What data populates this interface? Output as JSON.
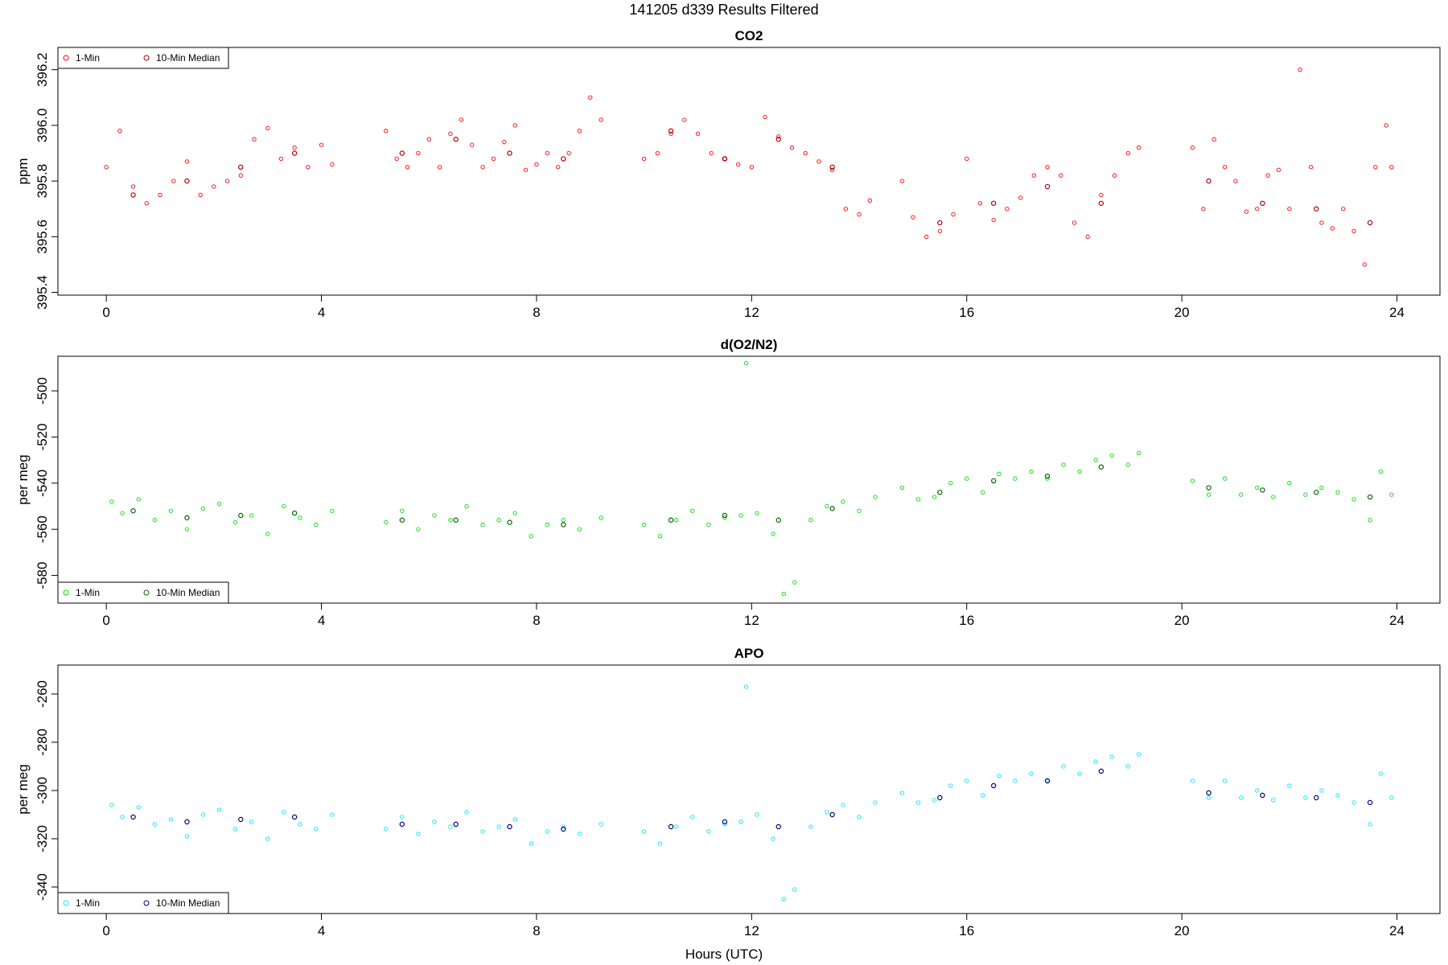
{
  "figure": {
    "title": "141205   d339   Results Filtered",
    "xlabel": "Hours (UTC)"
  },
  "chart_data": [
    {
      "type": "scatter",
      "title": "CO2",
      "ylabel": "ppm",
      "xlim": [
        -0.9,
        24.8
      ],
      "ylim": [
        395.39,
        396.28
      ],
      "x_ticks": [
        0,
        4,
        8,
        12,
        16,
        20,
        24
      ],
      "y_ticks": [
        395.4,
        395.6,
        395.8,
        396.0,
        396.2
      ],
      "y_tick_labels": [
        "395.4",
        "395.6",
        "395.8",
        "396.0",
        "396.2"
      ],
      "legend": {
        "placement": "top-left",
        "entries": [
          "1-Min",
          "10-Min Median"
        ]
      },
      "grid": false,
      "series": [
        {
          "name": "1-Min",
          "color": "#ff0000",
          "marker": "open-circle",
          "x": [
            0.0,
            0.25,
            0.5,
            0.75,
            1.0,
            1.25,
            1.5,
            1.75,
            2.0,
            2.25,
            2.5,
            2.75,
            3.0,
            3.25,
            3.5,
            3.75,
            4.0,
            4.2,
            5.2,
            5.4,
            5.6,
            5.8,
            6.0,
            6.2,
            6.4,
            6.6,
            6.8,
            7.0,
            7.2,
            7.4,
            7.6,
            7.8,
            8.0,
            8.2,
            8.4,
            8.6,
            8.8,
            9.0,
            9.2,
            10.0,
            10.25,
            10.5,
            10.75,
            11.0,
            11.25,
            11.5,
            11.75,
            12.0,
            12.25,
            12.5,
            12.75,
            13.0,
            13.25,
            13.5,
            13.75,
            14.0,
            14.2,
            14.8,
            15.0,
            15.25,
            15.5,
            15.75,
            16.0,
            16.25,
            16.5,
            16.75,
            17.0,
            17.25,
            17.5,
            17.75,
            18.0,
            18.25,
            18.5,
            18.75,
            19.0,
            19.2,
            20.2,
            20.4,
            20.6,
            20.8,
            21.0,
            21.2,
            21.4,
            21.6,
            21.8,
            22.0,
            22.2,
            22.4,
            22.6,
            22.8,
            23.0,
            23.2,
            23.4,
            23.6,
            23.8,
            23.9
          ],
          "y": [
            395.85,
            395.98,
            395.78,
            395.72,
            395.75,
            395.8,
            395.87,
            395.75,
            395.78,
            395.8,
            395.82,
            395.95,
            395.99,
            395.88,
            395.92,
            395.85,
            395.93,
            395.86,
            395.98,
            395.88,
            395.85,
            395.9,
            395.95,
            395.85,
            395.97,
            396.02,
            395.93,
            395.85,
            395.88,
            395.94,
            396.0,
            395.84,
            395.86,
            395.9,
            395.85,
            395.9,
            395.98,
            396.1,
            396.02,
            395.88,
            395.9,
            395.97,
            396.02,
            395.97,
            395.9,
            395.88,
            395.86,
            395.85,
            396.03,
            395.96,
            395.92,
            395.9,
            395.87,
            395.84,
            395.7,
            395.68,
            395.73,
            395.8,
            395.67,
            395.6,
            395.62,
            395.68,
            395.88,
            395.72,
            395.66,
            395.7,
            395.74,
            395.82,
            395.85,
            395.82,
            395.65,
            395.6,
            395.75,
            395.82,
            395.9,
            395.92,
            395.92,
            395.7,
            395.95,
            395.85,
            395.8,
            395.69,
            395.7,
            395.82,
            395.84,
            395.7,
            396.2,
            395.85,
            395.65,
            395.63,
            395.7,
            395.62,
            395.5,
            395.85,
            396.0,
            395.85
          ]
        },
        {
          "name": "10-Min Median",
          "color": "#b00000",
          "marker": "open-circle",
          "x": [
            0.5,
            1.5,
            2.5,
            3.5,
            5.5,
            6.5,
            7.5,
            8.5,
            10.5,
            11.5,
            12.5,
            13.5,
            15.5,
            16.5,
            17.5,
            18.5,
            20.5,
            21.5,
            22.5,
            23.5
          ],
          "y": [
            395.75,
            395.8,
            395.85,
            395.9,
            395.9,
            395.95,
            395.9,
            395.88,
            395.98,
            395.88,
            395.95,
            395.85,
            395.65,
            395.72,
            395.78,
            395.72,
            395.8,
            395.72,
            395.7,
            395.65
          ]
        }
      ]
    },
    {
      "type": "scatter",
      "title": "d(O2/N2)",
      "ylabel": "per meg",
      "xlim": [
        -0.9,
        24.8
      ],
      "ylim": [
        -592,
        -485
      ],
      "x_ticks": [
        0,
        4,
        8,
        12,
        16,
        20,
        24
      ],
      "y_ticks": [
        -580,
        -560,
        -540,
        -520,
        -500
      ],
      "y_tick_labels": [
        "-580",
        "-560",
        "-540",
        "-520",
        "-500"
      ],
      "legend": {
        "placement": "bottom-left",
        "entries": [
          "1-Min",
          "10-Min Median"
        ]
      },
      "grid": false,
      "series": [
        {
          "name": "1-Min",
          "color": "#00dd00",
          "marker": "open-circle",
          "x": [
            0.1,
            0.3,
            0.6,
            0.9,
            1.2,
            1.5,
            1.8,
            2.1,
            2.4,
            2.7,
            3.0,
            3.3,
            3.6,
            3.9,
            4.2,
            5.2,
            5.5,
            5.8,
            6.1,
            6.4,
            6.7,
            7.0,
            7.3,
            7.6,
            7.9,
            8.2,
            8.5,
            8.8,
            9.2,
            10.0,
            10.3,
            10.6,
            10.9,
            11.2,
            11.5,
            11.8,
            11.9,
            12.1,
            12.4,
            12.6,
            12.8,
            13.1,
            13.4,
            13.7,
            14.0,
            14.3,
            14.8,
            15.1,
            15.4,
            15.7,
            16.0,
            16.3,
            16.6,
            16.9,
            17.2,
            17.5,
            17.8,
            18.1,
            18.4,
            18.7,
            19.0,
            19.2,
            20.2,
            20.5,
            20.8,
            21.1,
            21.4,
            21.7,
            22.0,
            22.3,
            22.6,
            22.9,
            23.2,
            23.5,
            23.7,
            23.9
          ],
          "y": [
            -548,
            -553,
            -547,
            -556,
            -552,
            -560,
            -551,
            -549,
            -557,
            -554,
            -562,
            -550,
            -555,
            -558,
            -552,
            -557,
            -552,
            -560,
            -554,
            -556,
            -550,
            -558,
            -556,
            -553,
            -563,
            -558,
            -556,
            -560,
            -555,
            -558,
            -563,
            -556,
            -552,
            -558,
            -555,
            -554,
            -488,
            -553,
            -562,
            -588,
            -583,
            -556,
            -550,
            -548,
            -552,
            -546,
            -542,
            -547,
            -546,
            -540,
            -538,
            -544,
            -536,
            -538,
            -535,
            -538,
            -532,
            -535,
            -530,
            -528,
            -532,
            -527,
            -539,
            -545,
            -538,
            -545,
            -542,
            -546,
            -540,
            -545,
            -542,
            -544,
            -547,
            -556,
            -535,
            -545
          ]
        },
        {
          "name": "10-Min Median",
          "color": "#006600",
          "marker": "open-circle",
          "x": [
            0.5,
            1.5,
            2.5,
            3.5,
            5.5,
            6.5,
            7.5,
            8.5,
            10.5,
            11.5,
            12.5,
            13.5,
            15.5,
            16.5,
            17.5,
            18.5,
            20.5,
            21.5,
            22.5,
            23.5
          ],
          "y": [
            -552,
            -555,
            -554,
            -553,
            -556,
            -556,
            -557,
            -558,
            -556,
            -554,
            -556,
            -551,
            -544,
            -539,
            -537,
            -533,
            -542,
            -543,
            -544,
            -546
          ]
        }
      ]
    },
    {
      "type": "scatter",
      "title": "APO",
      "ylabel": "per meg",
      "xlim": [
        -0.9,
        24.8
      ],
      "ylim": [
        -351,
        -248
      ],
      "x_ticks": [
        0,
        4,
        8,
        12,
        16,
        20,
        24
      ],
      "y_ticks": [
        -340,
        -320,
        -300,
        -280,
        -260
      ],
      "y_tick_labels": [
        "-340",
        "-320",
        "-300",
        "-280",
        "-260"
      ],
      "legend": {
        "placement": "bottom-left",
        "entries": [
          "1-Min",
          "10-Min Median"
        ]
      },
      "grid": false,
      "series": [
        {
          "name": "1-Min",
          "color": "#00e5ff",
          "marker": "open-circle",
          "x": [
            0.1,
            0.3,
            0.6,
            0.9,
            1.2,
            1.5,
            1.8,
            2.1,
            2.4,
            2.7,
            3.0,
            3.3,
            3.6,
            3.9,
            4.2,
            5.2,
            5.5,
            5.8,
            6.1,
            6.4,
            6.7,
            7.0,
            7.3,
            7.6,
            7.9,
            8.2,
            8.5,
            8.8,
            9.2,
            10.0,
            10.3,
            10.6,
            10.9,
            11.2,
            11.5,
            11.8,
            11.9,
            12.1,
            12.4,
            12.6,
            12.8,
            13.1,
            13.4,
            13.7,
            14.0,
            14.3,
            14.8,
            15.1,
            15.4,
            15.7,
            16.0,
            16.3,
            16.6,
            16.9,
            17.2,
            17.5,
            17.8,
            18.1,
            18.4,
            18.7,
            19.0,
            19.2,
            20.2,
            20.5,
            20.8,
            21.1,
            21.4,
            21.7,
            22.0,
            22.3,
            22.6,
            22.9,
            23.2,
            23.5,
            23.7,
            23.9
          ],
          "y": [
            -306,
            -311,
            -307,
            -314,
            -312,
            -319,
            -310,
            -308,
            -316,
            -313,
            -320,
            -309,
            -314,
            -316,
            -310,
            -316,
            -311,
            -318,
            -313,
            -315,
            -309,
            -317,
            -315,
            -312,
            -322,
            -317,
            -315,
            -318,
            -314,
            -317,
            -322,
            -315,
            -311,
            -317,
            -314,
            -313,
            -257,
            -310,
            -320,
            -345,
            -341,
            -315,
            -309,
            -306,
            -311,
            -305,
            -301,
            -305,
            -304,
            -298,
            -296,
            -302,
            -294,
            -296,
            -293,
            -296,
            -290,
            -293,
            -288,
            -286,
            -290,
            -285,
            -296,
            -303,
            -296,
            -303,
            -300,
            -304,
            -298,
            -303,
            -300,
            -302,
            -305,
            -314,
            -293,
            -303
          ]
        },
        {
          "name": "10-Min Median",
          "color": "#000080",
          "marker": "open-circle",
          "x": [
            0.5,
            1.5,
            2.5,
            3.5,
            5.5,
            6.5,
            7.5,
            8.5,
            10.5,
            11.5,
            12.5,
            13.5,
            15.5,
            16.5,
            17.5,
            18.5,
            20.5,
            21.5,
            22.5,
            23.5
          ],
          "y": [
            -311,
            -313,
            -312,
            -311,
            -314,
            -314,
            -315,
            -316,
            -315,
            -313,
            -315,
            -310,
            -303,
            -298,
            -296,
            -292,
            -301,
            -302,
            -303,
            -305
          ]
        }
      ]
    }
  ]
}
